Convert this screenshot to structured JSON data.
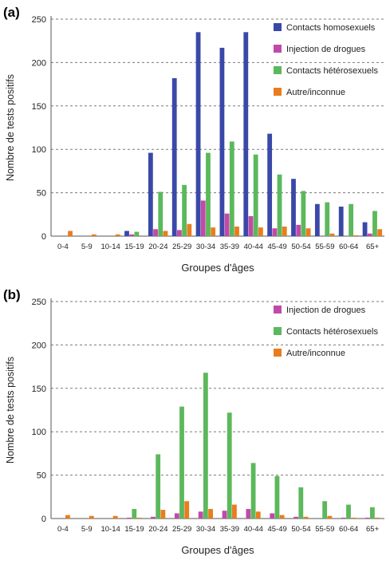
{
  "chart_data": [
    {
      "panel_label": "(a)",
      "type": "bar",
      "xlabel": "Groupes d'âges",
      "ylabel": "Nombre de tests positifs",
      "ylim": [
        0,
        250
      ],
      "yticks": [
        0,
        50,
        100,
        150,
        200,
        250
      ],
      "grid": "horizontal-dashed",
      "legend_position": "top-right",
      "categories": [
        "0-4",
        "5-9",
        "10-14",
        "15-19",
        "20-24",
        "25-29",
        "30-34",
        "35-39",
        "40-44",
        "45-49",
        "50-54",
        "55-59",
        "60-64",
        "65+"
      ],
      "series": [
        {
          "name": "Contacts homosexuels",
          "color": "#3a48a8",
          "values": [
            0,
            0,
            0,
            6,
            96,
            182,
            235,
            217,
            235,
            118,
            66,
            37,
            34,
            16
          ]
        },
        {
          "name": "Injection de drogues",
          "color": "#c04aa8",
          "values": [
            0,
            0,
            0,
            2,
            8,
            7,
            41,
            26,
            23,
            9,
            13,
            0,
            0,
            3
          ]
        },
        {
          "name": "Contacts hétérosexuels",
          "color": "#5cb85c",
          "values": [
            0,
            0,
            0,
            5,
            51,
            59,
            96,
            109,
            94,
            71,
            52,
            39,
            37,
            29
          ]
        },
        {
          "name": "Autre/inconnue",
          "color": "#e87d1e",
          "values": [
            6,
            2,
            2,
            0,
            6,
            14,
            10,
            11,
            10,
            11,
            9,
            3,
            1,
            8
          ]
        }
      ]
    },
    {
      "panel_label": "(b)",
      "type": "bar",
      "xlabel": "Groupes d'âges",
      "ylabel": "Nombre de tests positifs",
      "ylim": [
        0,
        250
      ],
      "yticks": [
        0,
        50,
        100,
        150,
        200,
        250
      ],
      "grid": "horizontal-dashed",
      "legend_position": "top-right",
      "categories": [
        "0-4",
        "5-9",
        "10-14",
        "15-19",
        "20-24",
        "25-29",
        "30-34",
        "35-39",
        "40-44",
        "45-49",
        "50-54",
        "55-59",
        "60-64",
        "65+"
      ],
      "series": [
        {
          "name": "Injection de drogues",
          "color": "#c04aa8",
          "values": [
            0,
            0,
            0,
            1,
            2,
            6,
            8,
            9,
            11,
            6,
            2,
            0,
            1,
            1
          ]
        },
        {
          "name": "Contacts hétérosexuels",
          "color": "#5cb85c",
          "values": [
            0,
            0,
            0,
            11,
            74,
            129,
            168,
            122,
            64,
            49,
            36,
            20,
            16,
            13
          ]
        },
        {
          "name": "Autre/inconnue",
          "color": "#e87d1e",
          "values": [
            4,
            3,
            3,
            1,
            10,
            20,
            11,
            16,
            8,
            4,
            2,
            3,
            1,
            1
          ]
        }
      ]
    }
  ]
}
